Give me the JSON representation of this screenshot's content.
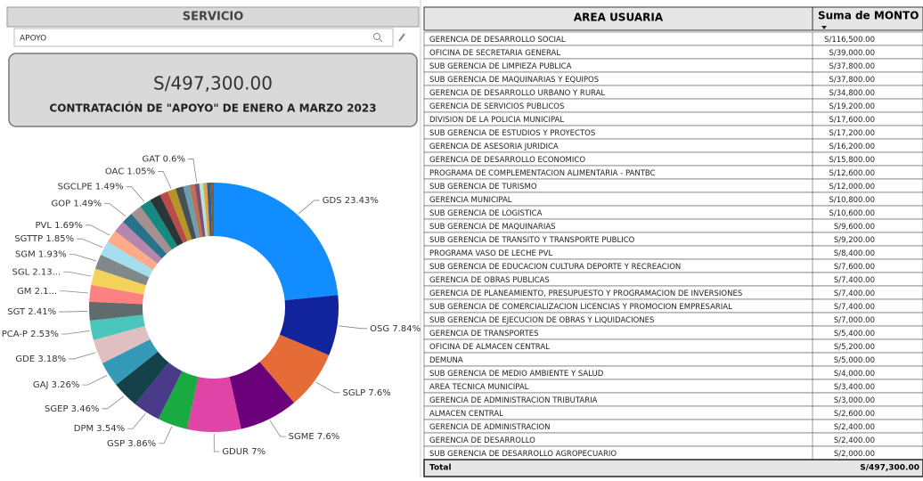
{
  "slicer": {
    "title": "SERVICIO",
    "selection": "APOYO"
  },
  "card": {
    "value": "S/497,300.00",
    "caption": "CONTRATACIÓN DE \"APOYO\" DE ENERO A MARZO 2023"
  },
  "chart_data": {
    "type": "donut",
    "values": [
      23.43,
      7.84,
      7.6,
      7.6,
      7,
      3.86,
      3.54,
      3.46,
      3.26,
      3.18,
      2.53,
      2.41,
      2.17,
      2.13,
      1.93,
      1.85,
      1.69,
      1.53,
      1.49,
      1.49,
      1.49,
      1.41,
      1.09,
      1.05,
      1.01,
      0.8,
      0.68,
      0.6,
      0.52,
      0.48,
      0.48,
      0.4
    ],
    "value_labels": [
      "GDS 23.43%",
      "OSG 7.84%",
      "SGLP 7.6%",
      "SGME 7.6%",
      "GDUR 7%",
      "GSP 3.86%",
      "DPM 3.54%",
      "SGEP 3.46%",
      "GAJ 3.26%",
      "GDE 3.18%",
      "PCA-P 2.53%",
      "SGT 2.41%",
      "GM 2.1...",
      "SGL 2.13...",
      "SGM 1.93%",
      "SGTTP 1.85%",
      "PVL 1.69%",
      null,
      "GOP 1.49%",
      null,
      "SGCLPE 1.49%",
      null,
      null,
      "OAC 1.05%",
      null,
      null,
      null,
      "GAT 0.6%",
      null,
      null,
      null,
      null
    ],
    "colors": [
      "#118dff",
      "#12239e",
      "#e66c37",
      "#6b007b",
      "#e044a7",
      "#1aab40",
      "#4a3b8a",
      "#15414b",
      "#3599b8",
      "#dfbfbf",
      "#4ac5bb",
      "#5f6b6d",
      "#fb8281",
      "#f4d25a",
      "#7f898a",
      "#a4ddee",
      "#fdab89",
      "#b687ac",
      "#28738a",
      "#a78f8f",
      "#168980",
      "#293537",
      "#bb4a4a",
      "#b59525",
      "#475052",
      "#6a9fb0",
      "#bd7150",
      "#7b4f71",
      "#b4e1d8",
      "#e8a13e",
      "#2e5e8c",
      "#8a5a2b"
    ]
  },
  "table": {
    "header": [
      "AREA USUARIA",
      "Suma de MONTO"
    ],
    "rows": [
      [
        "GERENCIA DE DESARROLLO SOCIAL",
        "S/116,500.00"
      ],
      [
        "OFICINA DE SECRETARIA GENERAL",
        "S/39,000.00"
      ],
      [
        "SUB GERENCIA DE LIMPIEZA PUBLICA",
        "S/37,800.00"
      ],
      [
        "SUB GERENCIA DE MAQUINARIAS Y EQUIPOS",
        "S/37,800.00"
      ],
      [
        "GERENCIA DE DESARROLLO URBANO Y RURAL",
        "S/34,800.00"
      ],
      [
        "GERENCIA DE SERVICIOS PUBLICOS",
        "S/19,200.00"
      ],
      [
        "DIVISION DE LA POLICIA MUNICIPAL",
        "S/17,600.00"
      ],
      [
        "SUB GERENCIA DE ESTUDIOS Y PROYECTOS",
        "S/17,200.00"
      ],
      [
        "GERENCIA DE ASESORIA JURIDICA",
        "S/16,200.00"
      ],
      [
        "GERENCIA DE DESARROLLO ECONOMICO",
        "S/15,800.00"
      ],
      [
        "PROGRAMA DE COMPLEMENTACION ALIMENTARIA - PANTBC",
        "S/12,600.00"
      ],
      [
        "SUB GERENCIA DE TURISMO",
        "S/12,000.00"
      ],
      [
        "GERENCIA MUNICIPAL",
        "S/10,800.00"
      ],
      [
        "SUB GERENCIA DE LOGISTICA",
        "S/10,600.00"
      ],
      [
        "SUB GERENCIA DE MAQUINARIAS",
        "S/9,600.00"
      ],
      [
        "SUB GERENCIA DE TRANSITO Y TRANSPORTE PUBLICO",
        "S/9,200.00"
      ],
      [
        "PROGRAMA VASO DE LECHE PVL",
        "S/8,400.00"
      ],
      [
        "SUB GERENCIA DE EDUCACION CULTURA DEPORTE Y RECREACION",
        "S/7,600.00"
      ],
      [
        "GERENCIA DE OBRAS PUBLICAS",
        "S/7,400.00"
      ],
      [
        "GERENCIA DE PLANEAMIENTO, PRESUPUESTO Y PROGRAMACION DE INVERSIONES",
        "S/7,400.00"
      ],
      [
        "SUB GERENCIA DE COMERCIALIZACION LICENCIAS Y PROMOCION EMPRESARIAL",
        "S/7,400.00"
      ],
      [
        "SUB GERENCIA DE EJECUCION DE OBRAS Y LIQUIDACIONES",
        "S/7,000.00"
      ],
      [
        "GERENCIA DE TRANSPORTES",
        "S/5,400.00"
      ],
      [
        "OFICINA DE ALMACEN CENTRAL",
        "S/5,200.00"
      ],
      [
        "DEMUNA",
        "S/5,000.00"
      ],
      [
        "SUB GERENCIA DE MEDIO AMBIENTE Y SALUD",
        "S/4,000.00"
      ],
      [
        "AREA TECNICA MUNICIPAL",
        "S/3,400.00"
      ],
      [
        "GERENCIA DE ADMINISTRACION TRIBUTARIA",
        "S/3,000.00"
      ],
      [
        "ALMACEN CENTRAL",
        "S/2,600.00"
      ],
      [
        "GERENCIA DE ADMINISTRACION",
        "S/2,400.00"
      ],
      [
        "GERENCIA DE DESARROLLO",
        "S/2,400.00"
      ],
      [
        "SUB GERENCIA DE DESARROLLO AGROPECUARIO",
        "S/2,000.00"
      ]
    ],
    "total": [
      "Total",
      "S/497,300.00"
    ]
  }
}
